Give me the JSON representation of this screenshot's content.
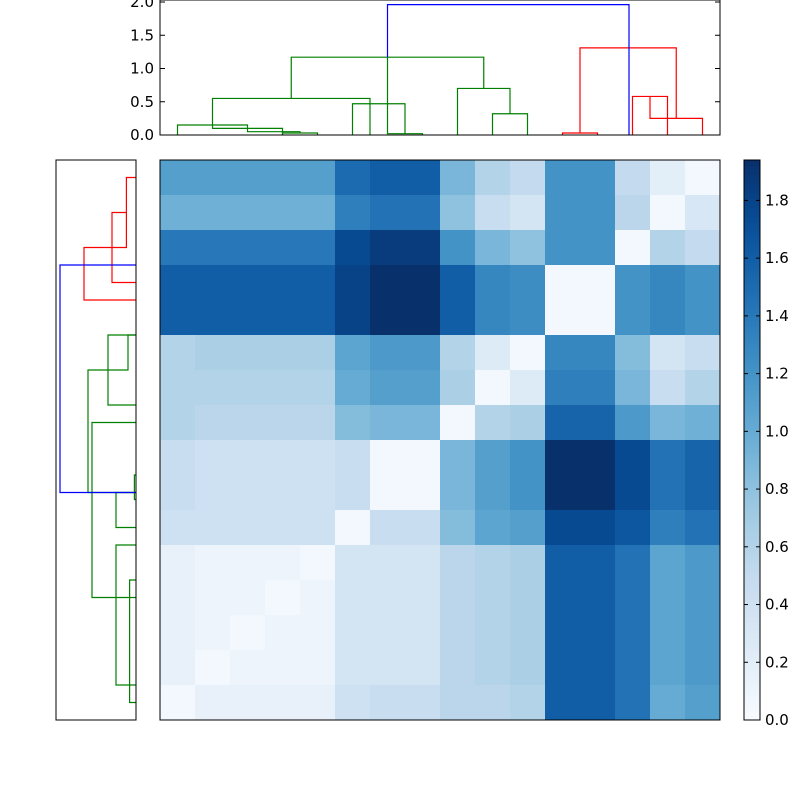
{
  "chart_data": [
    {
      "type": "dendrogram",
      "orientation": "top",
      "ylim": [
        0,
        2.0
      ],
      "yticks": [
        0.0,
        0.5,
        1.0,
        1.5,
        2.0
      ],
      "ytick_labels": [
        "0.0",
        "0.5",
        "1.0",
        "1.5",
        "2.0"
      ],
      "leaves": 16,
      "colors": {
        "root": "#0000ff",
        "cluster_a": "#008000",
        "cluster_b": "#ff0000"
      },
      "links": [
        {
          "left": 0.5,
          "right": 2.5,
          "height": 0.15,
          "color": "#008000"
        },
        {
          "left": 1.5,
          "right": 3.5,
          "height": 0.1,
          "color": "#008000"
        },
        {
          "left": 2.5,
          "right": 4.0,
          "height": 0.05,
          "color": "#008000"
        },
        {
          "left": 3.5,
          "right": 4.5,
          "height": 0.03,
          "color": "#008000"
        },
        {
          "left": 1.5,
          "right": 6.0,
          "height": 0.55,
          "color": "#008000"
        },
        {
          "left": 5.5,
          "right": 7.0,
          "height": 0.47,
          "color": "#008000"
        },
        {
          "left": 6.5,
          "right": 7.5,
          "height": 0.02,
          "color": "#008000"
        },
        {
          "left": 8.5,
          "right": 10.0,
          "height": 0.7,
          "color": "#008000"
        },
        {
          "left": 9.5,
          "right": 10.5,
          "height": 0.32,
          "color": "#008000"
        },
        {
          "left": 3.75,
          "right": 9.25,
          "height": 1.17,
          "color": "#008000"
        },
        {
          "left": 11.5,
          "right": 12.5,
          "height": 0.03,
          "color": "#ff0000"
        },
        {
          "left": 13.5,
          "right": 14.5,
          "height": 0.58,
          "color": "#ff0000"
        },
        {
          "left": 14.0,
          "right": 15.5,
          "height": 0.25,
          "color": "#ff0000"
        },
        {
          "left": 12.0,
          "right": 14.75,
          "height": 1.31,
          "color": "#ff0000"
        },
        {
          "left": 6.5,
          "right": 13.4,
          "height": 1.96,
          "color": "#0000ff"
        }
      ]
    },
    {
      "type": "dendrogram",
      "orientation": "left",
      "leaves": 16,
      "links": [
        {
          "top": 0.5,
          "bottom": 2.5,
          "depth": 0.12,
          "color": "#ff0000"
        },
        {
          "top": 1.5,
          "bottom": 3.5,
          "depth": 0.3,
          "color": "#ff0000"
        },
        {
          "top": 2.5,
          "bottom": 4.0,
          "depth": 0.65,
          "color": "#ff0000"
        },
        {
          "top": 5.0,
          "bottom": 6.0,
          "depth": 0.1,
          "color": "#008000"
        },
        {
          "top": 5.0,
          "bottom": 7.0,
          "depth": 0.35,
          "color": "#008000"
        },
        {
          "top": 6.0,
          "bottom": 9.5,
          "depth": 0.6,
          "color": "#008000"
        },
        {
          "top": 9.0,
          "bottom": 9.7,
          "depth": 0.02,
          "color": "#008000"
        },
        {
          "top": 9.5,
          "bottom": 10.5,
          "depth": 0.25,
          "color": "#008000"
        },
        {
          "top": 11.0,
          "bottom": 15.0,
          "depth": 0.25,
          "color": "#008000"
        },
        {
          "top": 12.0,
          "bottom": 15.5,
          "depth": 0.08,
          "color": "#008000"
        },
        {
          "top": 7.5,
          "bottom": 12.5,
          "depth": 0.55,
          "color": "#008000"
        },
        {
          "top": 3.0,
          "bottom": 9.5,
          "depth": 0.95,
          "color": "#0000ff"
        }
      ]
    },
    {
      "type": "heatmap",
      "rows": 16,
      "cols": 16,
      "colormap": "Blues",
      "vmin": 0.0,
      "vmax": 1.94,
      "values": [
        [
          1.1,
          1.1,
          1.1,
          1.1,
          1.1,
          1.5,
          1.6,
          1.6,
          0.9,
          0.6,
          0.5,
          1.2,
          1.2,
          0.5,
          0.2,
          0.05
        ],
        [
          0.95,
          0.95,
          0.95,
          0.95,
          0.95,
          1.35,
          1.45,
          1.45,
          0.8,
          0.45,
          0.35,
          1.2,
          1.2,
          0.55,
          0.05,
          0.3
        ],
        [
          1.4,
          1.4,
          1.4,
          1.4,
          1.4,
          1.75,
          1.85,
          1.85,
          1.2,
          0.9,
          0.8,
          1.2,
          1.2,
          0.05,
          0.6,
          0.5
        ],
        [
          1.6,
          1.6,
          1.6,
          1.6,
          1.6,
          1.8,
          1.94,
          1.94,
          1.6,
          1.3,
          1.25,
          0.05,
          0.05,
          1.2,
          1.3,
          1.2
        ],
        [
          1.6,
          1.6,
          1.6,
          1.6,
          1.6,
          1.8,
          1.94,
          1.94,
          1.6,
          1.3,
          1.25,
          0.05,
          0.05,
          1.2,
          1.3,
          1.2
        ],
        [
          0.6,
          0.65,
          0.65,
          0.65,
          0.65,
          1.05,
          1.15,
          1.15,
          0.6,
          0.25,
          0.05,
          1.3,
          1.3,
          0.85,
          0.35,
          0.45
        ],
        [
          0.6,
          0.6,
          0.6,
          0.6,
          0.6,
          1.0,
          1.1,
          1.1,
          0.65,
          0.05,
          0.25,
          1.35,
          1.35,
          0.9,
          0.45,
          0.6
        ],
        [
          0.6,
          0.55,
          0.55,
          0.55,
          0.55,
          0.85,
          0.9,
          0.9,
          0.05,
          0.6,
          0.65,
          1.55,
          1.55,
          1.15,
          0.9,
          0.95
        ],
        [
          0.45,
          0.4,
          0.4,
          0.4,
          0.4,
          0.45,
          0.05,
          0.05,
          0.9,
          1.1,
          1.2,
          1.94,
          1.94,
          1.75,
          1.45,
          1.55
        ],
        [
          0.45,
          0.4,
          0.4,
          0.4,
          0.4,
          0.45,
          0.05,
          0.05,
          0.9,
          1.1,
          1.2,
          1.94,
          1.94,
          1.75,
          1.45,
          1.55
        ],
        [
          0.4,
          0.4,
          0.4,
          0.4,
          0.4,
          0.05,
          0.45,
          0.45,
          0.85,
          1.05,
          1.1,
          1.75,
          1.75,
          1.65,
          1.35,
          1.45
        ],
        [
          0.15,
          0.1,
          0.1,
          0.1,
          0.05,
          0.35,
          0.35,
          0.35,
          0.55,
          0.6,
          0.65,
          1.6,
          1.6,
          1.45,
          1.05,
          1.15
        ],
        [
          0.15,
          0.1,
          0.1,
          0.05,
          0.1,
          0.35,
          0.35,
          0.35,
          0.55,
          0.6,
          0.65,
          1.6,
          1.6,
          1.45,
          1.05,
          1.15
        ],
        [
          0.15,
          0.1,
          0.05,
          0.1,
          0.1,
          0.35,
          0.35,
          0.35,
          0.55,
          0.6,
          0.65,
          1.6,
          1.6,
          1.45,
          1.05,
          1.15
        ],
        [
          0.15,
          0.05,
          0.1,
          0.1,
          0.1,
          0.35,
          0.35,
          0.35,
          0.55,
          0.6,
          0.65,
          1.6,
          1.6,
          1.45,
          1.05,
          1.15
        ],
        [
          0.05,
          0.15,
          0.15,
          0.15,
          0.15,
          0.4,
          0.45,
          0.45,
          0.55,
          0.55,
          0.6,
          1.6,
          1.6,
          1.45,
          1.0,
          1.1
        ]
      ]
    },
    {
      "type": "colorbar",
      "colormap": "Blues",
      "range": [
        0.0,
        1.94
      ],
      "ticks": [
        0.0,
        0.2,
        0.4,
        0.6,
        0.8,
        1.0,
        1.2,
        1.4,
        1.6,
        1.8
      ],
      "tick_labels": [
        "0.0",
        "0.2",
        "0.4",
        "0.6",
        "0.8",
        "1.0",
        "1.2",
        "1.4",
        "1.6",
        "1.8"
      ]
    }
  ]
}
